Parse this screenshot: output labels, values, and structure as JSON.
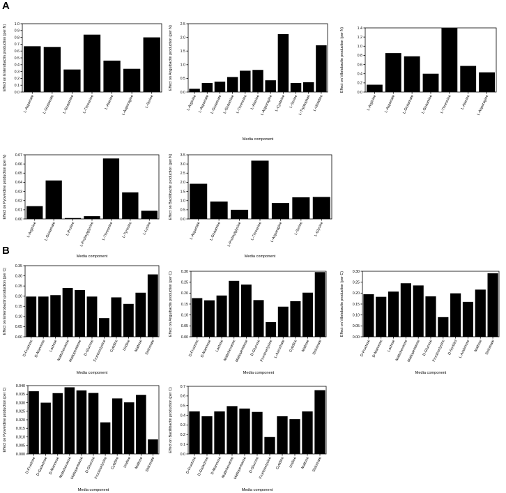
{
  "panels": {
    "a": "A",
    "b": "B"
  },
  "chart_data": [
    {
      "type": "bar",
      "ylabel": "Effect on Enterobactin production (per N)",
      "xlabel": "",
      "ylim": [
        0,
        1.0
      ],
      "yticks": [
        "0.0",
        "0.1",
        "0.2",
        "0.3",
        "0.4",
        "0.5",
        "0.6",
        "0.7",
        "0.8",
        "0.9",
        "1.0"
      ],
      "categories": [
        "L-Aspartate",
        "L-Glutamate",
        "L-Glutamine",
        "L-Threonine",
        "L-Alanine",
        "L-Asparagine",
        "L-Serine"
      ],
      "values": [
        0.67,
        0.66,
        0.33,
        0.84,
        0.46,
        0.34,
        0.8
      ]
    },
    {
      "type": "bar",
      "ylabel": "Effect on Anguibactin production (per N)",
      "xlabel": "Media component",
      "ylim": [
        0,
        2.5
      ],
      "yticks": [
        "0.0",
        "0.5",
        "1.0",
        "1.5",
        "2.0",
        "2.5"
      ],
      "categories": [
        "L-Arginine",
        "L-Aspartate",
        "L-Glutamate",
        "L-Glutamine",
        "L-Threonine",
        "L-Alanine",
        "L-Asparagine",
        "L-Cysteine",
        "L-Serine",
        "L-Tryptophan",
        "L-Histidine"
      ],
      "values": [
        0.12,
        0.33,
        0.38,
        0.55,
        0.78,
        0.81,
        0.43,
        2.12,
        0.33,
        0.36,
        1.71
      ]
    },
    {
      "type": "bar",
      "ylabel": "Effect on Vibriobactin production (per N)",
      "xlabel": "",
      "ylim": [
        0,
        1.4
      ],
      "yticks": [
        "0.0",
        "0.2",
        "0.4",
        "0.6",
        "0.8",
        "1.0",
        "1.2",
        "1.4"
      ],
      "categories": [
        "L-Arginine",
        "L-Aspartate",
        "L-Glutamate",
        "L-Glutamine",
        "L-Threonine",
        "L-Alanine",
        "L-Asparagine"
      ],
      "values": [
        0.16,
        0.85,
        0.78,
        0.4,
        1.4,
        0.57,
        0.43
      ]
    },
    {
      "type": "bar",
      "ylabel": "Effect on Pyoverdine production (per N)",
      "xlabel": "Media component",
      "ylim": [
        0,
        0.07
      ],
      "yticks": [
        "0.00",
        "0.01",
        "0.02",
        "0.03",
        "0.04",
        "0.05",
        "0.06",
        "0.07"
      ],
      "categories": [
        "L-Arginine",
        "L-Glutamate",
        "L-Proline",
        "L-Prolinylglycine",
        "L-Threonine",
        "L-Tyrosine",
        "L-Lysine"
      ],
      "values": [
        0.014,
        0.042,
        0.001,
        0.003,
        0.066,
        0.029,
        0.009
      ]
    },
    {
      "type": "bar",
      "ylabel": "Effect on Bacillibactin production (per N)",
      "xlabel": "Media component",
      "ylim": [
        0,
        3.5
      ],
      "yticks": [
        "0.0",
        "0.5",
        "1.0",
        "1.5",
        "2.0",
        "2.5",
        "3.0",
        "3.5"
      ],
      "categories": [
        "L-Aspartate",
        "L-Glutamine",
        "L-Prolinylglycine",
        "L-Threonine",
        "L-Asparagine",
        "L-Serine",
        "L-Glycine"
      ],
      "values": [
        1.92,
        0.95,
        0.5,
        3.18,
        0.87,
        1.18,
        1.2
      ]
    },
    {
      "type": "bar",
      "ylabel": "Effect on Enterobactin production (per C)",
      "xlabel": "Media component",
      "ylim": [
        0,
        0.35
      ],
      "yticks": [
        "0.00",
        "0.05",
        "0.10",
        "0.15",
        "0.20",
        "0.25",
        "0.30",
        "0.35"
      ],
      "categories": [
        "D-Fructose",
        "D-Mannose",
        "Lactose",
        "Maltohexaose",
        "Maltopentaose",
        "D-Glucose",
        "Fructoselysine",
        "Cytidine",
        "Uridine",
        "Maltose",
        "Shikimate"
      ],
      "values": [
        0.198,
        0.198,
        0.205,
        0.24,
        0.23,
        0.198,
        0.092,
        0.194,
        0.162,
        0.217,
        0.307
      ]
    },
    {
      "type": "bar",
      "ylabel": "Effect on Anguibactin production (per C)",
      "xlabel": "Media component",
      "ylim": [
        0,
        0.3
      ],
      "yticks": [
        "0.00",
        "0.05",
        "0.10",
        "0.15",
        "0.20",
        "0.25",
        "0.30"
      ],
      "categories": [
        "D-Fructose",
        "D-Mannose",
        "Lactose",
        "Maltohexaose",
        "Maltopentaose",
        "D-Glucose",
        "Fructoselysine",
        "L-Ascorbate",
        "Cytidine",
        "Maltose",
        "Shikimate"
      ],
      "values": [
        0.177,
        0.167,
        0.189,
        0.256,
        0.239,
        0.168,
        0.067,
        0.138,
        0.163,
        0.202,
        0.296
      ]
    },
    {
      "type": "bar",
      "ylabel": "Effect on Vibriobactin production (per C)",
      "xlabel": "Media component",
      "ylim": [
        0,
        0.3
      ],
      "yticks": [
        "0.00",
        "0.05",
        "0.10",
        "0.15",
        "0.20",
        "0.25",
        "0.30"
      ],
      "categories": [
        "D-Fructose",
        "D-Mannose",
        "Lactose",
        "Maltohexaose",
        "Maltopentaose",
        "D-Glucose",
        "Fructoselysine",
        "D-Sorbitol",
        "L-Arabinose",
        "Maltose",
        "Shikimate"
      ],
      "values": [
        0.195,
        0.183,
        0.207,
        0.245,
        0.235,
        0.185,
        0.09,
        0.199,
        0.16,
        0.216,
        0.291
      ]
    },
    {
      "type": "bar",
      "ylabel": "Effect on Pyoverdine production (per C)",
      "xlabel": "Media component",
      "ylim": [
        0,
        0.04
      ],
      "yticks": [
        "0.000",
        "0.005",
        "0.010",
        "0.015",
        "0.020",
        "0.025",
        "0.030",
        "0.035",
        "0.040"
      ],
      "categories": [
        "D-Fructose",
        "D-Galactose",
        "D-Mannose",
        "Maltohexaose",
        "Maltopentaose",
        "D-Glucose",
        "Fructoselysine",
        "Cytidine",
        "Uridine",
        "Maltose",
        "Shikimate"
      ],
      "values": [
        0.0367,
        0.03,
        0.0356,
        0.039,
        0.0372,
        0.0357,
        0.0185,
        0.0325,
        0.0302,
        0.0346,
        0.0085
      ]
    },
    {
      "type": "bar",
      "ylabel": "Effect on Bacillibactin production (per C)",
      "xlabel": "Media component",
      "ylim": [
        0,
        0.7
      ],
      "yticks": [
        "0.0",
        "0.1",
        "0.2",
        "0.3",
        "0.4",
        "0.5",
        "0.6",
        "0.7"
      ],
      "categories": [
        "D-Fructose",
        "D-Galactose",
        "D-Mannose",
        "Maltohexaose",
        "Maltopentaose",
        "D-Glucose",
        "Fructoselysine",
        "Cytidine",
        "Uridine",
        "Maltose",
        "Shikimate"
      ],
      "values": [
        0.44,
        0.39,
        0.44,
        0.495,
        0.47,
        0.435,
        0.175,
        0.39,
        0.36,
        0.44,
        0.66
      ]
    }
  ]
}
